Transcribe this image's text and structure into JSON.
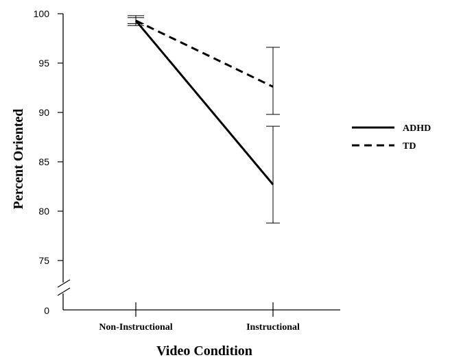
{
  "chart_data": {
    "type": "line",
    "xlabel": "Video Condition",
    "ylabel": "Percent Oriented",
    "categories": [
      "Non-Instructional",
      "Instructional"
    ],
    "ylim": [
      75,
      100
    ],
    "y_ticks": [
      "100",
      "95",
      "90",
      "85",
      "80",
      "75"
    ],
    "y_tick_values": [
      100,
      95,
      90,
      85,
      80,
      75
    ],
    "axis_break": true,
    "axis_break_label": "0",
    "grid": false,
    "legend_position": "right",
    "series": [
      {
        "name": "ADHD",
        "style": "solid",
        "color": "#000000",
        "values": [
          99.3,
          82.7
        ],
        "err_upper": [
          99.6,
          88.6
        ],
        "err_lower": [
          99.0,
          78.8
        ]
      },
      {
        "name": "TD",
        "style": "dashed",
        "color": "#000000",
        "values": [
          99.3,
          92.6
        ],
        "err_upper": [
          99.8,
          96.6
        ],
        "err_lower": [
          98.8,
          89.8
        ]
      }
    ]
  }
}
